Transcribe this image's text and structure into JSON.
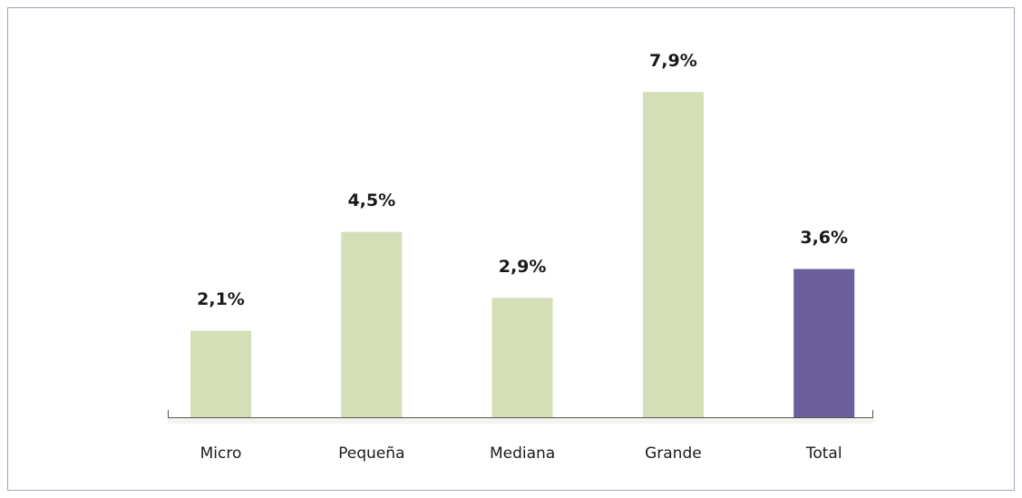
{
  "chart_data": {
    "type": "bar",
    "categories": [
      "Micro",
      "Pequeña",
      "Mediana",
      "Grande",
      "Total"
    ],
    "values": [
      2.1,
      4.5,
      2.9,
      7.9,
      3.6
    ],
    "value_labels": [
      "2,1%",
      "4,5%",
      "2,9%",
      "7,9%",
      "3,6%"
    ],
    "colors": [
      "#d4dfb8",
      "#d4dfb8",
      "#d4dfb8",
      "#d4dfb8",
      "#6b5f9e"
    ]
  }
}
